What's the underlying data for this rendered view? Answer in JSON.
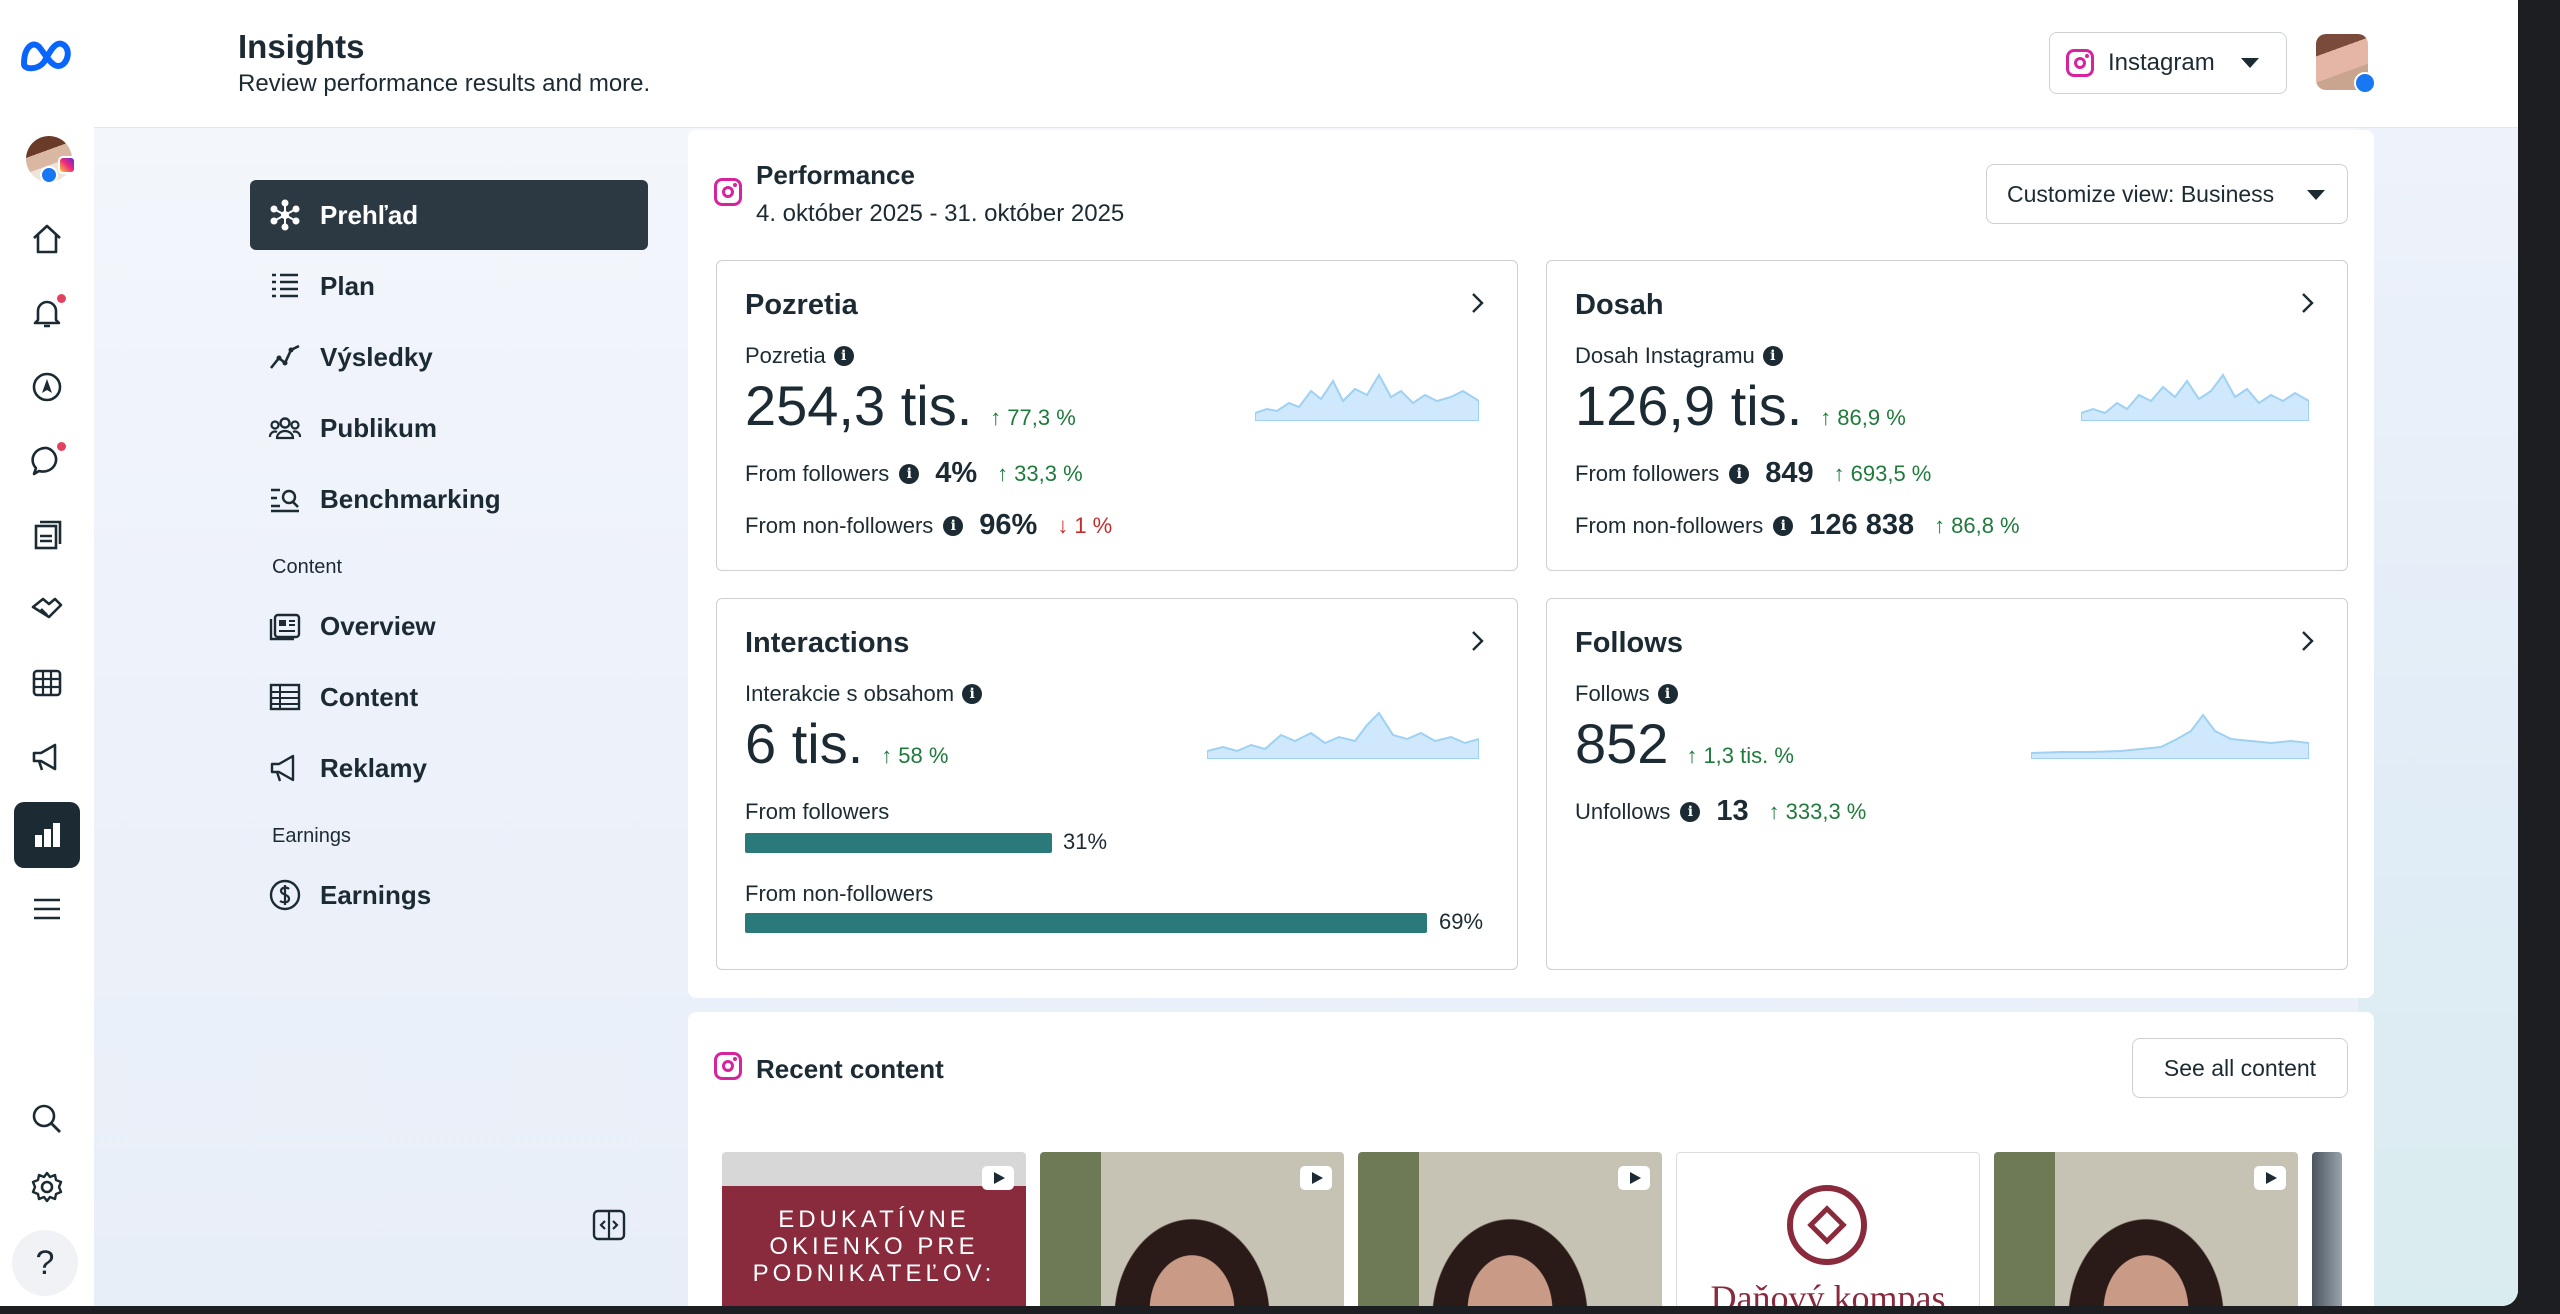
{
  "header": {
    "title": "Insights",
    "subtitle": "Review performance results and more.",
    "platform": "Instagram"
  },
  "rail": {
    "icons": [
      "meta-logo",
      "profile-avatar",
      "home-icon",
      "notifications-icon",
      "explore-icon",
      "messages-icon",
      "pages-icon",
      "partnerships-icon",
      "table-icon",
      "ads-icon",
      "insights-icon",
      "menu-icon",
      "search-icon",
      "settings-icon",
      "help-icon"
    ],
    "help_label": "?"
  },
  "nav": {
    "items": [
      {
        "label": "Prehľad",
        "icon": "overview-star-icon",
        "active": true
      },
      {
        "label": "Plan",
        "icon": "list-icon"
      },
      {
        "label": "Výsledky",
        "icon": "trend-icon"
      },
      {
        "label": "Publikum",
        "icon": "audience-icon"
      },
      {
        "label": "Benchmarking",
        "icon": "benchmark-icon"
      }
    ],
    "content_section": "Content",
    "content_items": [
      {
        "label": "Overview",
        "icon": "content-overview-icon"
      },
      {
        "label": "Content",
        "icon": "grid-table-icon"
      },
      {
        "label": "Reklamy",
        "icon": "megaphone-icon"
      }
    ],
    "earnings_section": "Earnings",
    "earnings_items": [
      {
        "label": "Earnings",
        "icon": "dollar-icon"
      }
    ]
  },
  "performance": {
    "title": "Performance",
    "date_range": "4. október 2025 - 31. október 2025",
    "customize_label": "Customize view: Business",
    "cards": {
      "pozretia": {
        "title": "Pozretia",
        "metric_label": "Pozretia",
        "value": "254,3 tis.",
        "delta": "77,3 %",
        "from_followers_label": "From followers",
        "from_followers_value": "4%",
        "from_followers_delta": "33,3 %",
        "from_non_followers_label": "From non-followers",
        "from_non_followers_value": "96%",
        "from_non_followers_delta": "1 %"
      },
      "dosah": {
        "title": "Dosah",
        "metric_label": "Dosah Instagramu",
        "value": "126,9 tis.",
        "delta": "86,9 %",
        "from_followers_label": "From followers",
        "from_followers_value": "849",
        "from_followers_delta": "693,5 %",
        "from_non_followers_label": "From non-followers",
        "from_non_followers_value": "126 838",
        "from_non_followers_delta": "86,8 %"
      },
      "interactions": {
        "title": "Interactions",
        "metric_label": "Interakcie s obsahom",
        "value": "6 tis.",
        "delta": "58 %",
        "from_followers_label": "From followers",
        "from_followers_pct": "31%",
        "from_followers_fraction": 0.31,
        "from_non_followers_label": "From non-followers",
        "from_non_followers_pct": "69%",
        "from_non_followers_fraction": 0.69
      },
      "follows": {
        "title": "Follows",
        "metric_label": "Follows",
        "value": "852",
        "delta": "1,3 tis. %",
        "unfollows_label": "Unfollows",
        "unfollows_value": "13",
        "unfollows_delta": "333,3 %"
      }
    },
    "colors": {
      "up": "#1f7a3c",
      "down": "#c72c2c",
      "spark": "#bfe1f6",
      "bar": "#2b7a7b"
    }
  },
  "recent": {
    "title": "Recent content",
    "see_all": "See all content",
    "thumb1_text": "EDUKATÍVNE OKIENKO PRE PODNIKATEĽOV:",
    "thumb4_text": "Daňový kompas"
  }
}
